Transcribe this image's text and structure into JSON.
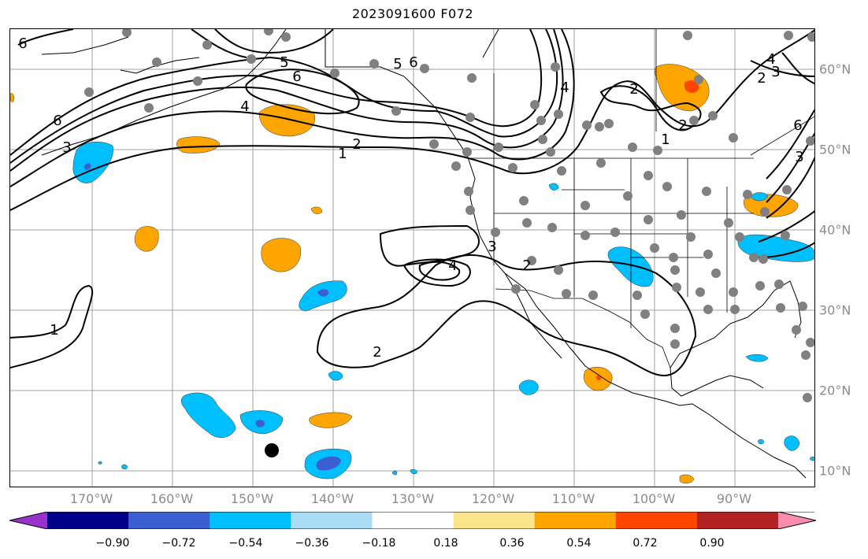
{
  "title": "2023091600 F072",
  "lon_labels": [
    "170°W",
    "160°W",
    "150°W",
    "140°W",
    "130°W",
    "120°W",
    "110°W",
    "100°W",
    "90°W"
  ],
  "lat_labels": [
    "60°N",
    "50°N",
    "40°N",
    "30°N",
    "20°N",
    "10°N"
  ],
  "colorbar": {
    "ticks": [
      "−0.90",
      "−0.72",
      "−0.54",
      "−0.36",
      "−0.18",
      "0.18",
      "0.36",
      "0.54",
      "0.72",
      "0.90"
    ],
    "colors": [
      "#9932cc",
      "#00008b",
      "#3b5fd0",
      "#00bfff",
      "#aadcf5",
      "#ffffff",
      "#fbe58c",
      "#ffa500",
      "#ff4500",
      "#b22222",
      "#f98caf"
    ]
  },
  "contour_labels": [
    "6",
    "5",
    "6",
    "4",
    "3",
    "6",
    "2",
    "1",
    "6",
    "5",
    "4",
    "2",
    "1",
    "2",
    "3",
    "6",
    "4",
    "2",
    "3",
    "3",
    "4",
    "2",
    "1",
    "2"
  ],
  "colors": {
    "contour": "#000000",
    "station": "#808080",
    "grid": "#a0a0a0",
    "coast": "#000000",
    "marker": "#000000"
  }
}
